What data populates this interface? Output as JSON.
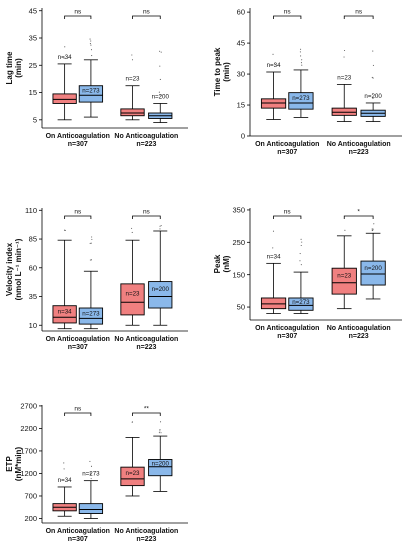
{
  "colors": {
    "on": "#f08080",
    "no": "#8ab8ea",
    "axis": "#000000"
  },
  "chart_data": [
    {
      "type": "box",
      "ylabel_lines": [
        "Lag time",
        "(min)"
      ],
      "yticks": [
        "5",
        "15",
        "25",
        "35",
        "45"
      ],
      "ytick_values": [
        5,
        15,
        25,
        35,
        45
      ],
      "ylim": [
        2,
        46
      ],
      "groups": [
        {
          "category_lines": [
            "On Anticoagulation",
            "n=307"
          ],
          "significance": "ns",
          "boxes": [
            {
              "series": "on",
              "min": 5,
              "q1": 11,
              "median": 12.5,
              "q3": 14.5,
              "max": 25.5,
              "n_label": "n=34",
              "n_position": "above"
            },
            {
              "series": "no",
              "min": 6,
              "q1": 11.5,
              "median": 14,
              "q3": 17.5,
              "max": 27,
              "n_label": "n=273",
              "n_position": "inside"
            }
          ]
        },
        {
          "category_lines": [
            "No Anticoagulation",
            "n=223"
          ],
          "significance": "ns",
          "boxes": [
            {
              "series": "on",
              "min": 5,
              "q1": 6.5,
              "median": 7.5,
              "q3": 9,
              "max": 17.5,
              "n_label": "n=23",
              "n_position": "above"
            },
            {
              "series": "no",
              "min": 4,
              "q1": 5.5,
              "median": 6.5,
              "q3": 7.5,
              "max": 11,
              "n_label": "n=200",
              "n_position": "above"
            }
          ]
        }
      ]
    },
    {
      "type": "box",
      "ylabel_lines": [
        "Time to peak",
        "(min)"
      ],
      "yticks": [
        "0",
        "15",
        "30",
        "45",
        "60"
      ],
      "ytick_values": [
        0,
        15,
        30,
        45,
        60
      ],
      "ylim": [
        0,
        62
      ],
      "groups": [
        {
          "category_lines": [
            "On Anticoagulation",
            "n=307"
          ],
          "significance": "ns",
          "boxes": [
            {
              "series": "on",
              "min": 8,
              "q1": 13.5,
              "median": 16,
              "q3": 18,
              "max": 31,
              "n_label": "n=34",
              "n_position": "above"
            },
            {
              "series": "no",
              "min": 9,
              "q1": 13,
              "median": 16,
              "q3": 21,
              "max": 32,
              "n_label": "n=273",
              "n_position": "inside"
            }
          ]
        },
        {
          "category_lines": [
            "No Anticoagulation",
            "n=223"
          ],
          "significance": "ns",
          "boxes": [
            {
              "series": "on",
              "min": 7,
              "q1": 10,
              "median": 11.5,
              "q3": 13.5,
              "max": 25,
              "n_label": "n=23",
              "n_position": "above"
            },
            {
              "series": "no",
              "min": 7,
              "q1": 9.5,
              "median": 11,
              "q3": 12.5,
              "max": 16,
              "n_label": "n=200",
              "n_position": "above"
            }
          ]
        }
      ]
    },
    {
      "type": "box",
      "ylabel_lines": [
        "Velocity index",
        "(nmol L⁻¹ min⁻¹)"
      ],
      "yticks": [
        "10",
        "35",
        "60",
        "85",
        "110"
      ],
      "ytick_values": [
        10,
        35,
        60,
        85,
        110
      ],
      "ylim": [
        5,
        112
      ],
      "groups": [
        {
          "category_lines": [
            "On Anticoagulation",
            "n=307"
          ],
          "significance": "ns",
          "boxes": [
            {
              "series": "on",
              "min": 7,
              "q1": 12,
              "median": 17,
              "q3": 27,
              "max": 84,
              "n_label": "n=34",
              "n_position": "inside"
            },
            {
              "series": "no",
              "min": 7,
              "q1": 11,
              "median": 16,
              "q3": 25,
              "max": 57,
              "n_label": "n=273",
              "n_position": "inside"
            }
          ]
        },
        {
          "category_lines": [
            "No Anticoagulation",
            "n=223"
          ],
          "significance": "ns",
          "boxes": [
            {
              "series": "on",
              "min": 10,
              "q1": 19,
              "median": 30,
              "q3": 46,
              "max": 84,
              "n_label": "n=23",
              "n_position": "inside"
            },
            {
              "series": "no",
              "min": 10,
              "q1": 25,
              "median": 35,
              "q3": 48,
              "max": 92,
              "n_label": "n=200",
              "n_position": "inside"
            }
          ]
        }
      ]
    },
    {
      "type": "box",
      "ylabel_lines": [
        "Peak",
        "(nM)"
      ],
      "yticks": [
        "50",
        "150",
        "250",
        "350"
      ],
      "ytick_values": [
        50,
        150,
        250,
        350
      ],
      "ylim": [
        10,
        356
      ],
      "groups": [
        {
          "category_lines": [
            "On Anticoagulation",
            "n=307"
          ],
          "significance": "ns",
          "boxes": [
            {
              "series": "on",
              "min": 30,
              "q1": 45,
              "median": 60,
              "q3": 78,
              "max": 185,
              "n_label": "n=34",
              "n_position": "above"
            },
            {
              "series": "no",
              "min": 30,
              "q1": 40,
              "median": 55,
              "q3": 78,
              "max": 158,
              "n_label": "n=273",
              "n_position": "inside"
            }
          ]
        },
        {
          "category_lines": [
            "No Anticoagulation",
            "n=223"
          ],
          "significance": "*",
          "boxes": [
            {
              "series": "on",
              "min": 45,
              "q1": 90,
              "median": 125,
              "q3": 170,
              "max": 270,
              "n_label": "n=23",
              "n_position": "inside"
            },
            {
              "series": "no",
              "min": 75,
              "q1": 118,
              "median": 152,
              "q3": 192,
              "max": 278,
              "n_label": "n=200",
              "n_position": "inside"
            }
          ]
        }
      ]
    },
    {
      "type": "box",
      "ylabel_lines": [
        "ETP",
        "(nM*min)"
      ],
      "yticks": [
        "200",
        "700",
        "1200",
        "1700",
        "2200",
        "2700"
      ],
      "ytick_values": [
        200,
        700,
        1200,
        1700,
        2200,
        2700
      ],
      "ylim": [
        100,
        2720
      ],
      "groups": [
        {
          "category_lines": [
            "On Anticoagulation",
            "n=307"
          ],
          "significance": "ns",
          "boxes": [
            {
              "series": "on",
              "min": 250,
              "q1": 370,
              "median": 450,
              "q3": 530,
              "max": 900,
              "n_label": "n=34",
              "n_position": "above"
            },
            {
              "series": "no",
              "min": 200,
              "q1": 310,
              "median": 400,
              "q3": 530,
              "max": 1040,
              "n_label": "n=273",
              "n_position": "above"
            }
          ]
        },
        {
          "category_lines": [
            "No Anticoagulation",
            "n=223"
          ],
          "significance": "**",
          "boxes": [
            {
              "series": "on",
              "min": 700,
              "q1": 930,
              "median": 1080,
              "q3": 1340,
              "max": 2000,
              "n_label": "n=23",
              "n_position": "inside"
            },
            {
              "series": "no",
              "min": 800,
              "q1": 1150,
              "median": 1350,
              "q3": 1510,
              "max": 2030,
              "n_label": "n=200",
              "n_position": "inside"
            }
          ]
        }
      ]
    }
  ]
}
